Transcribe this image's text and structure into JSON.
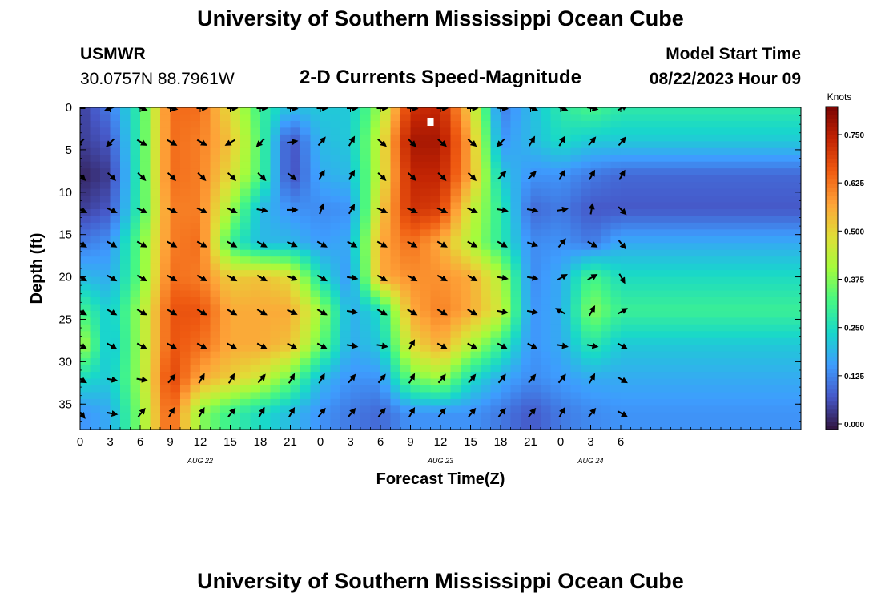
{
  "header": {
    "title": "University of Southern Mississippi Ocean Cube",
    "station": "USMWR",
    "coords": "30.0757N  88.7961W",
    "model_label": "Model Start Time",
    "model_time": "08/22/2023 Hour 09",
    "subtitle": "2-D Currents Speed-Magnitude"
  },
  "footer": {
    "title": "University of Southern Mississippi Ocean Cube"
  },
  "chart_data": {
    "type": "heatmap",
    "title": "2-D Currents Speed-Magnitude",
    "xlabel": "Forecast Time(Z)",
    "ylabel": "Depth (ft)",
    "x_hours": [
      0,
      72
    ],
    "x_tick_hours": [
      0,
      3,
      6,
      9,
      12,
      15,
      18,
      21,
      24,
      27,
      30,
      33,
      36,
      39,
      42,
      45,
      48,
      51,
      54
    ],
    "x_tick_labels": [
      "0",
      "3",
      "6",
      "9",
      "12",
      "15",
      "18",
      "21",
      "0",
      "3",
      "6",
      "9",
      "12",
      "15",
      "18",
      "21",
      "0",
      "3",
      "6"
    ],
    "date_labels": [
      {
        "hour": 12,
        "text": "AUG 22"
      },
      {
        "hour": 36,
        "text": "AUG 23"
      },
      {
        "hour": 51,
        "text": "AUG 24"
      }
    ],
    "ylim": [
      0,
      38
    ],
    "y_ticks": [
      0,
      5,
      10,
      15,
      20,
      25,
      30,
      35
    ],
    "colorbar": {
      "label": "Knots",
      "range": [
        0.0,
        0.8
      ],
      "ticks": [
        0.0,
        0.125,
        0.25,
        0.375,
        0.5,
        0.625,
        0.75
      ],
      "tick_labels": [
        "0.000",
        "0.125",
        "0.250",
        "0.375",
        "0.500",
        "0.625",
        "0.750"
      ]
    },
    "grid_hours": [
      0,
      3,
      6,
      9,
      12,
      15,
      18,
      21,
      24,
      27,
      30,
      33,
      36,
      39,
      42,
      45,
      48,
      51,
      54
    ],
    "grid_depths": [
      0,
      4,
      8,
      12,
      16,
      20,
      24,
      28,
      32,
      36
    ],
    "speed_knots": [
      [
        0.05,
        0.12,
        0.3,
        0.62,
        0.62,
        0.48,
        0.3,
        0.2,
        0.22,
        0.22,
        0.4,
        0.7,
        0.72,
        0.5,
        0.12,
        0.2,
        0.28,
        0.32,
        0.28
      ],
      [
        0.05,
        0.08,
        0.3,
        0.62,
        0.6,
        0.52,
        0.32,
        0.06,
        0.2,
        0.22,
        0.45,
        0.75,
        0.75,
        0.55,
        0.15,
        0.2,
        0.25,
        0.22,
        0.22
      ],
      [
        0.02,
        0.05,
        0.3,
        0.62,
        0.6,
        0.48,
        0.32,
        0.06,
        0.18,
        0.2,
        0.45,
        0.72,
        0.72,
        0.55,
        0.22,
        0.15,
        0.15,
        0.12,
        0.1
      ],
      [
        0.05,
        0.08,
        0.3,
        0.6,
        0.6,
        0.4,
        0.2,
        0.15,
        0.14,
        0.15,
        0.5,
        0.7,
        0.68,
        0.45,
        0.28,
        0.1,
        0.12,
        0.08,
        0.08
      ],
      [
        0.12,
        0.15,
        0.35,
        0.6,
        0.62,
        0.3,
        0.2,
        0.2,
        0.16,
        0.18,
        0.55,
        0.62,
        0.55,
        0.42,
        0.28,
        0.14,
        0.15,
        0.12,
        0.18
      ],
      [
        0.2,
        0.18,
        0.35,
        0.62,
        0.6,
        0.5,
        0.52,
        0.48,
        0.25,
        0.15,
        0.55,
        0.58,
        0.58,
        0.55,
        0.42,
        0.14,
        0.18,
        0.32,
        0.25
      ],
      [
        0.32,
        0.22,
        0.4,
        0.65,
        0.65,
        0.55,
        0.55,
        0.55,
        0.4,
        0.18,
        0.25,
        0.55,
        0.6,
        0.55,
        0.45,
        0.15,
        0.18,
        0.38,
        0.3
      ],
      [
        0.42,
        0.2,
        0.4,
        0.65,
        0.62,
        0.55,
        0.55,
        0.52,
        0.35,
        0.18,
        0.22,
        0.48,
        0.55,
        0.42,
        0.3,
        0.15,
        0.18,
        0.28,
        0.22
      ],
      [
        0.25,
        0.22,
        0.4,
        0.68,
        0.55,
        0.5,
        0.45,
        0.35,
        0.2,
        0.15,
        0.15,
        0.35,
        0.4,
        0.25,
        0.18,
        0.14,
        0.16,
        0.18,
        0.18
      ],
      [
        0.15,
        0.18,
        0.38,
        0.65,
        0.38,
        0.3,
        0.25,
        0.2,
        0.15,
        0.12,
        0.1,
        0.15,
        0.15,
        0.15,
        0.12,
        0.08,
        0.12,
        0.14,
        0.15
      ]
    ],
    "vector_hours": [
      0,
      3,
      6,
      9,
      12,
      15,
      18,
      21,
      24,
      27,
      30,
      33,
      36,
      39,
      42,
      45,
      48,
      51,
      54
    ],
    "vector_depths": [
      0,
      4,
      8,
      12,
      16,
      20,
      24,
      28,
      32,
      36
    ],
    "vector_dirs_deg": [
      [
        270,
        250,
        110,
        100,
        90,
        90,
        90,
        95,
        90,
        90,
        90,
        95,
        90,
        90,
        95,
        110,
        110,
        100,
        60
      ],
      [
        225,
        225,
        120,
        120,
        120,
        240,
        225,
        80,
        40,
        30,
        130,
        135,
        130,
        130,
        225,
        30,
        30,
        40,
        40
      ],
      [
        135,
        135,
        135,
        135,
        135,
        135,
        135,
        130,
        30,
        30,
        135,
        135,
        135,
        135,
        45,
        45,
        30,
        30,
        30
      ],
      [
        115,
        115,
        115,
        115,
        115,
        115,
        100,
        90,
        20,
        30,
        115,
        115,
        115,
        115,
        100,
        100,
        80,
        10,
        135
      ],
      [
        120,
        120,
        120,
        120,
        120,
        120,
        120,
        115,
        120,
        120,
        120,
        120,
        120,
        120,
        120,
        110,
        40,
        120,
        140
      ],
      [
        120,
        120,
        120,
        120,
        120,
        120,
        120,
        110,
        120,
        100,
        120,
        120,
        120,
        120,
        100,
        100,
        60,
        60,
        150
      ],
      [
        120,
        120,
        120,
        120,
        120,
        120,
        120,
        115,
        120,
        100,
        120,
        120,
        120,
        120,
        100,
        100,
        300,
        30,
        60
      ],
      [
        120,
        120,
        120,
        120,
        120,
        120,
        120,
        120,
        120,
        100,
        100,
        30,
        120,
        120,
        120,
        120,
        100,
        100,
        120
      ],
      [
        120,
        100,
        100,
        40,
        30,
        30,
        40,
        30,
        30,
        40,
        40,
        30,
        40,
        40,
        40,
        40,
        40,
        30,
        120
      ],
      [
        140,
        100,
        40,
        30,
        30,
        40,
        30,
        30,
        40,
        40,
        40,
        30,
        40,
        40,
        40,
        40,
        30,
        40,
        120
      ]
    ],
    "annotations": [
      {
        "type": "marker",
        "hour": 35,
        "depth": 1.7
      }
    ]
  }
}
